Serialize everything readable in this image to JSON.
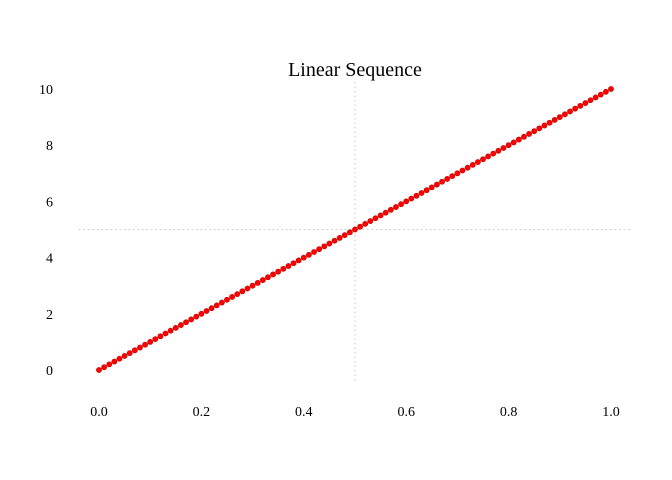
{
  "chart_data": {
    "type": "scatter",
    "title": "Linear Sequence",
    "xlabel": "",
    "ylabel": "",
    "xlim": [
      0,
      1
    ],
    "ylim": [
      0,
      10
    ],
    "x_ticks": [
      "0.0",
      "0.2",
      "0.4",
      "0.6",
      "0.8",
      "1.0"
    ],
    "y_ticks": [
      "0",
      "2",
      "4",
      "6",
      "8",
      "10"
    ],
    "reference_lines": {
      "x": 0.5,
      "y": 5
    },
    "grid": false,
    "series": [
      {
        "color": "#ff0000",
        "x_start": 0,
        "x_end": 1,
        "count": 101,
        "slope": 10,
        "intercept": 0
      }
    ]
  }
}
